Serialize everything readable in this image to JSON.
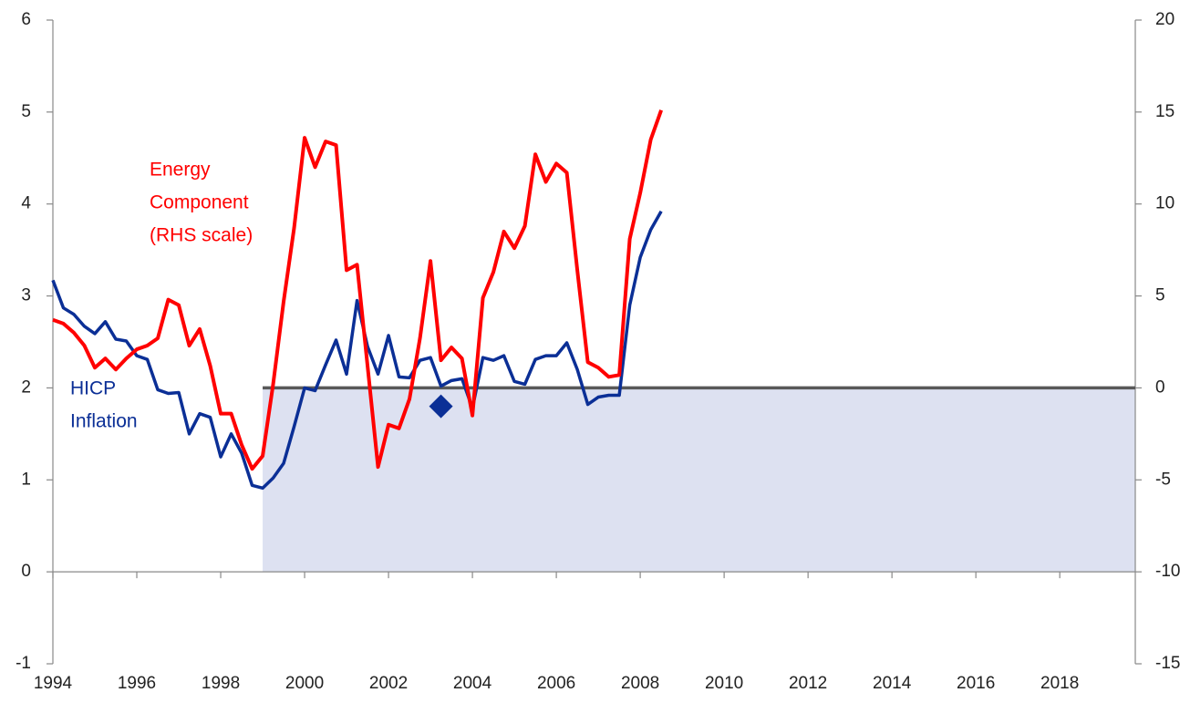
{
  "chart_data": {
    "type": "line",
    "x": [
      1994,
      1994.25,
      1994.5,
      1994.75,
      1995,
      1995.25,
      1995.5,
      1995.75,
      1996,
      1996.25,
      1996.5,
      1996.75,
      1997,
      1997.25,
      1997.5,
      1997.75,
      1998,
      1998.25,
      1998.5,
      1998.75,
      1999,
      1999.25,
      1999.5,
      1999.75,
      2000,
      2000.25,
      2000.5,
      2000.75,
      2001,
      2001.25,
      2001.5,
      2001.75,
      2002,
      2002.25,
      2002.5,
      2002.75,
      2003,
      2003.25,
      2003.5,
      2003.75,
      2004,
      2004.25,
      2004.5,
      2004.75,
      2005,
      2005.25,
      2005.5,
      2005.75,
      2006,
      2006.25,
      2006.5,
      2006.75,
      2007,
      2007.25,
      2007.5,
      2007.75,
      2008,
      2008.25,
      2008.5
    ],
    "series": [
      {
        "name": "HICP Inflation",
        "color": "#0b2f96",
        "axis": "y",
        "values": [
          3.17,
          2.87,
          2.8,
          2.67,
          2.59,
          2.72,
          2.53,
          2.51,
          2.35,
          2.31,
          1.98,
          1.94,
          1.95,
          1.5,
          1.72,
          1.68,
          1.25,
          1.5,
          1.29,
          0.94,
          0.91,
          1.02,
          1.18,
          1.58,
          2.0,
          1.97,
          2.25,
          2.52,
          2.15,
          2.95,
          2.45,
          2.15,
          2.57,
          2.12,
          2.11,
          2.3,
          2.33,
          2.02,
          2.08,
          2.1,
          1.78,
          2.33,
          2.3,
          2.35,
          2.07,
          2.04,
          2.31,
          2.35,
          2.35,
          2.49,
          2.2,
          1.82,
          1.9,
          1.92,
          1.92,
          2.9,
          3.42,
          3.72,
          3.92
        ]
      },
      {
        "name": "Energy Component (RHS scale)",
        "color": "#ff0000",
        "axis": "y2",
        "values": [
          3.7,
          3.5,
          3.0,
          2.3,
          1.1,
          1.6,
          1.0,
          1.6,
          2.1,
          2.3,
          2.7,
          4.8,
          4.5,
          2.3,
          3.2,
          1.2,
          -1.4,
          -1.4,
          -3.1,
          -4.4,
          -3.7,
          0.2,
          4.7,
          8.7,
          13.6,
          12.0,
          13.4,
          13.2,
          6.4,
          6.7,
          1.2,
          -4.3,
          -2.0,
          -2.2,
          -0.6,
          2.7,
          6.9,
          1.5,
          2.2,
          1.6,
          -1.5,
          4.9,
          6.3,
          8.5,
          7.6,
          8.8,
          12.7,
          11.2,
          12.2,
          11.7,
          6.4,
          1.4,
          1.1,
          0.6,
          0.7,
          8.1,
          10.6,
          13.5,
          15.1
        ]
      }
    ],
    "annotations": [
      [
        "HICP",
        "Inflation"
      ],
      [
        "Energy",
        "Component",
        "(RHS scale)"
      ]
    ],
    "marker": {
      "x": 2003.25,
      "y": 1.8,
      "color": "#0b2f96"
    },
    "reference_line": {
      "value": 2,
      "x_start": 1999,
      "color": "#595959"
    },
    "band": {
      "from": 0,
      "to": 2,
      "x_start": 1999,
      "color": "#dde1f1"
    },
    "xlim": [
      1994,
      2019.8
    ],
    "xticks": [
      1994,
      1996,
      1998,
      2000,
      2002,
      2004,
      2006,
      2008,
      2010,
      2012,
      2014,
      2016,
      2018
    ],
    "ylim": [
      -1,
      6
    ],
    "yticks": [
      -1,
      0,
      1,
      2,
      3,
      4,
      5,
      6
    ],
    "y2lim": [
      -15,
      20
    ],
    "y2ticks": [
      -15,
      -10,
      -5,
      0,
      5,
      10,
      15,
      20
    ]
  }
}
